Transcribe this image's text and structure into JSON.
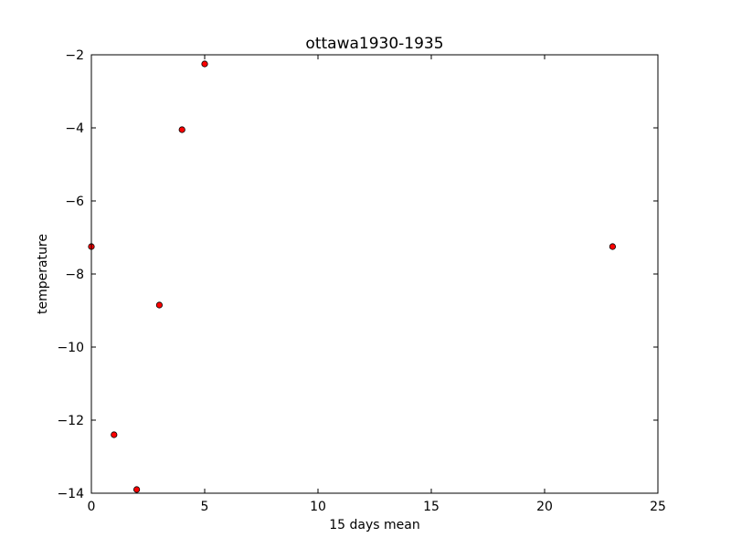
{
  "chart_data": {
    "type": "scatter",
    "title": "ottawa1930-1935",
    "xlabel": "15 days mean",
    "ylabel": "temperature",
    "xlim": [
      0,
      25
    ],
    "ylim": [
      -14,
      -2
    ],
    "xticks": [
      0,
      5,
      10,
      15,
      20,
      25
    ],
    "yticks": [
      -14,
      -12,
      -10,
      -8,
      -6,
      -4,
      -2
    ],
    "xtick_labels": [
      "0",
      "5",
      "10",
      "15",
      "20",
      "25"
    ],
    "ytick_labels": [
      "−14",
      "−12",
      "−10",
      "−8",
      "−6",
      "−4",
      "−2"
    ],
    "grid": false,
    "marker_color": "#ff0000",
    "marker_edge_color": "#000000",
    "points": [
      {
        "x": 0,
        "y": -7.25
      },
      {
        "x": 1,
        "y": -12.4
      },
      {
        "x": 2,
        "y": -13.9
      },
      {
        "x": 3,
        "y": -8.85
      },
      {
        "x": 4,
        "y": -4.05
      },
      {
        "x": 5,
        "y": -2.25
      },
      {
        "x": 23,
        "y": -7.25
      }
    ]
  }
}
